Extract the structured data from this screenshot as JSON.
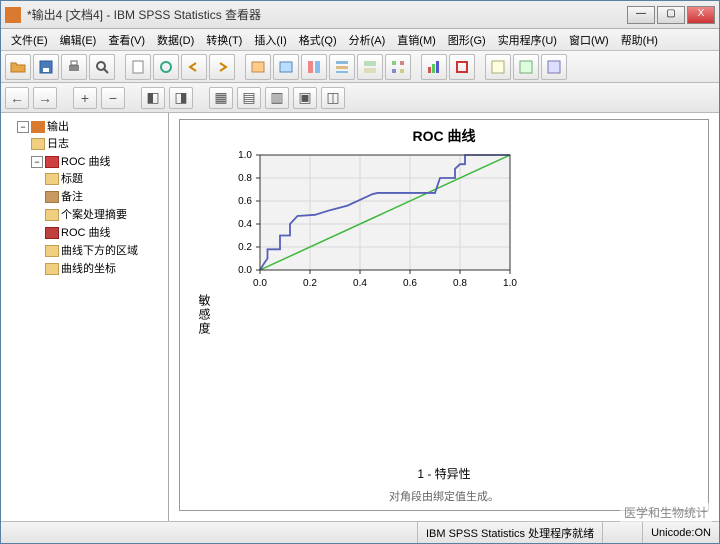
{
  "window": {
    "title": "*输出4 [文档4] - IBM SPSS Statistics 查看器",
    "min": "—",
    "max": "▢",
    "close": "X"
  },
  "menu": [
    "文件(E)",
    "编辑(E)",
    "查看(V)",
    "数据(D)",
    "转换(T)",
    "插入(I)",
    "格式(Q)",
    "分析(A)",
    "直销(M)",
    "图形(G)",
    "实用程序(U)",
    "窗口(W)",
    "帮助(H)"
  ],
  "tree": {
    "root": "输出",
    "items": [
      "日志",
      "ROC 曲线"
    ],
    "roc_children": [
      "标题",
      "备注",
      "个案处理摘要",
      "ROC 曲线",
      "曲线下方的区域",
      "曲线的坐标"
    ]
  },
  "chart": {
    "title": "ROC 曲线",
    "ylabel": "敏感度",
    "xlabel": "1 - 特异性",
    "subtitle": "对角段由绑定值生成。",
    "xlim": [
      0,
      1
    ],
    "ylim": [
      0,
      1
    ],
    "ticks": [
      0.0,
      0.2,
      0.4,
      0.6,
      0.8,
      1.0
    ],
    "tick_labels": [
      "0.0",
      "0.2",
      "0.4",
      "0.6",
      "0.8",
      "1.0"
    ],
    "bg_color": "#f2f2f2",
    "grid_color": "#d8d8d8",
    "border_color": "#333333",
    "diag_color": "#3db83b",
    "roc_color": "#5560b8",
    "roc_points": [
      [
        0.0,
        0.0
      ],
      [
        0.02,
        0.07
      ],
      [
        0.03,
        0.1
      ],
      [
        0.03,
        0.18
      ],
      [
        0.08,
        0.18
      ],
      [
        0.08,
        0.3
      ],
      [
        0.12,
        0.3
      ],
      [
        0.12,
        0.4
      ],
      [
        0.15,
        0.47
      ],
      [
        0.22,
        0.48
      ],
      [
        0.28,
        0.52
      ],
      [
        0.35,
        0.56
      ],
      [
        0.45,
        0.66
      ],
      [
        0.47,
        0.67
      ],
      [
        0.7,
        0.67
      ],
      [
        0.72,
        0.8
      ],
      [
        0.78,
        0.8
      ],
      [
        0.78,
        0.88
      ],
      [
        0.8,
        0.92
      ],
      [
        0.82,
        0.92
      ],
      [
        0.82,
        1.0
      ],
      [
        1.0,
        1.0
      ]
    ]
  },
  "status": {
    "proc": "IBM SPSS Statistics 处理程序就绪",
    "unicode": "Unicode:ON"
  },
  "watermark": "医学和生物统计"
}
